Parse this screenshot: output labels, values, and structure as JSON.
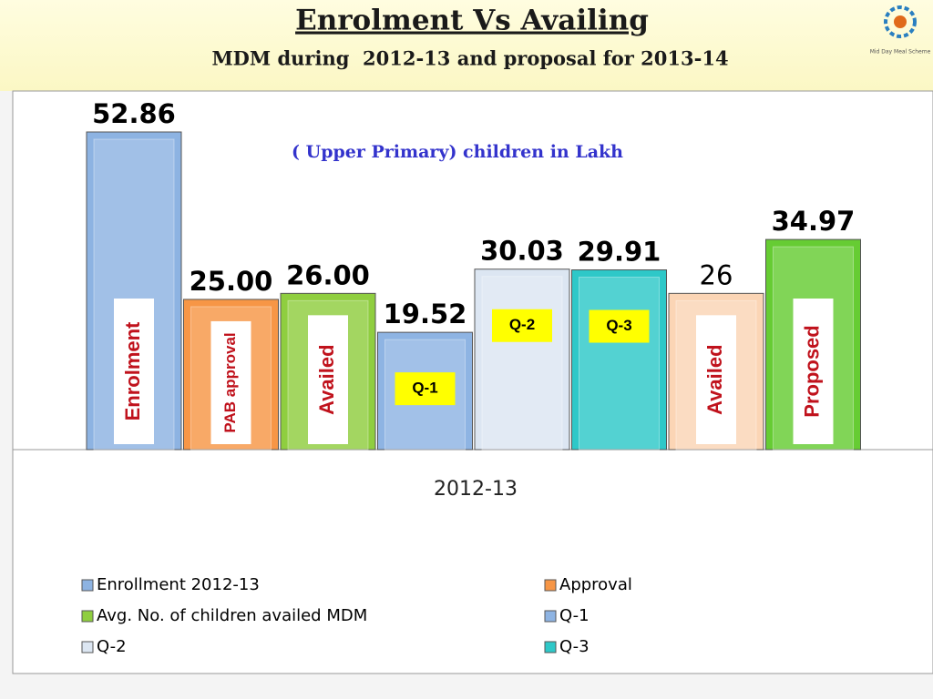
{
  "chart_data": {
    "type": "bar",
    "title": "Enrolment Vs Availing",
    "subtitle": "MDM during  2012-13 and proposal for 2013-14",
    "annotation": "( Upper Primary) children in Lakh",
    "logo_text": "Mid Day Meal Scheme",
    "categories": [
      "2012-13"
    ],
    "series": [
      {
        "name": "Enrollment 2012-13",
        "color": "#8db3e2",
        "values": [
          52.86
        ],
        "value_labels": [
          "52.86"
        ],
        "tag": "Enrolment",
        "tag_fill": "#ffffff"
      },
      {
        "name": "Approval",
        "color": "#f79646",
        "values": [
          25.0
        ],
        "value_labels": [
          "25.00"
        ],
        "tag": "PAB approval",
        "tag_fill": "#ffffff"
      },
      {
        "name": "Avg. No. of children availed MDM",
        "color": "#8fce3f",
        "values": [
          26.0
        ],
        "value_labels": [
          "26.00"
        ],
        "tag": "Availed",
        "tag_fill": "#ffffff"
      },
      {
        "name": "Q-1",
        "color": "#8eb4e3",
        "values": [
          19.52
        ],
        "value_labels": [
          "19.52"
        ],
        "tag": "Q-1",
        "tag_fill": "#ffff00"
      },
      {
        "name": "Q-2",
        "color": "#dce6f2",
        "values": [
          30.03
        ],
        "value_labels": [
          "30.03"
        ],
        "tag": "Q-2",
        "tag_fill": "#ffff00"
      },
      {
        "name": "Q-3",
        "color": "#2ec8c8",
        "values": [
          29.91
        ],
        "value_labels": [
          "29.91"
        ],
        "tag": "Q-3",
        "tag_fill": "#ffff00"
      },
      {
        "color": "#fbd5b5",
        "values": [
          26
        ],
        "value_labels": [
          "26"
        ],
        "tag": "Availed",
        "tag_fill": "#ffffff",
        "label_bold": false
      },
      {
        "color": "#66cc33",
        "values": [
          34.97
        ],
        "value_labels": [
          "34.97"
        ],
        "tag": "Proposed",
        "tag_fill": "#ffffff"
      }
    ]
  }
}
